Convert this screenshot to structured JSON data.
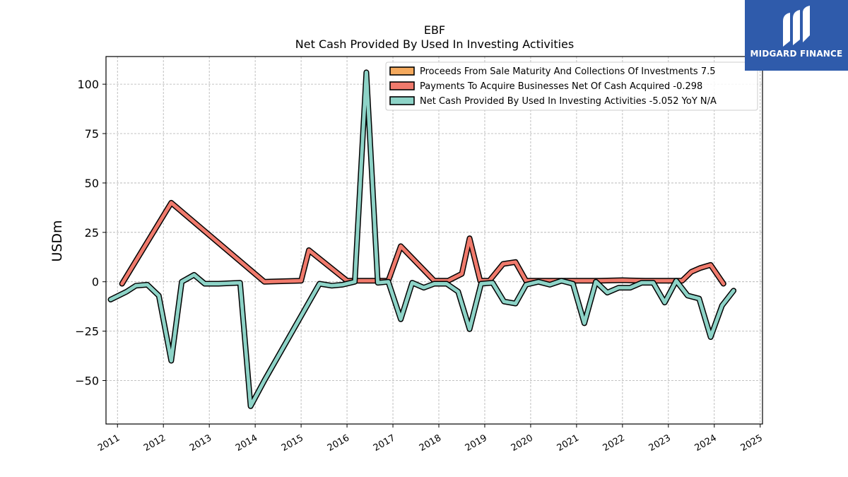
{
  "chart_data": {
    "type": "line",
    "title": "EBF",
    "subtitle": "Net Cash Provided By Used In Investing Activities",
    "ylabel": "USDm",
    "xlabel": "",
    "xlim": [
      2010.75,
      2025.05
    ],
    "ylim": [
      -72,
      114
    ],
    "yticks": [
      -50,
      -25,
      0,
      25,
      50,
      75,
      100
    ],
    "xticks": [
      "2011",
      "2012",
      "2013",
      "2014",
      "2015",
      "2016",
      "2017",
      "2018",
      "2019",
      "2020",
      "2021",
      "2022",
      "2023",
      "2024",
      "2025"
    ],
    "grid": true,
    "legend_position": "top-right",
    "series": [
      {
        "name": "Proceeds From Sale Maturity And Collections Of Investments",
        "legend": "Proceeds From Sale Maturity And Collections Of Investments  7.5",
        "color": "#f4a95d",
        "points": []
      },
      {
        "name": "Payments To Acquire Businesses Net Of Cash Acquired",
        "legend": "Payments To Acquire Businesses Net Of Cash Acquired  -0.298",
        "color": "#f07a6c",
        "points": [
          [
            2011.1,
            -1
          ],
          [
            2012.17,
            40
          ],
          [
            2014.2,
            0
          ],
          [
            2015.0,
            0.5
          ],
          [
            2015.17,
            16
          ],
          [
            2016.0,
            0.5
          ],
          [
            2016.5,
            0.5
          ],
          [
            2016.9,
            0.5
          ],
          [
            2017.17,
            18
          ],
          [
            2017.9,
            0.5
          ],
          [
            2018.2,
            0.5
          ],
          [
            2018.5,
            4
          ],
          [
            2018.67,
            22
          ],
          [
            2018.9,
            0.5
          ],
          [
            2019.1,
            0.5
          ],
          [
            2019.4,
            9
          ],
          [
            2019.67,
            10
          ],
          [
            2019.9,
            0.5
          ],
          [
            2020.2,
            0.5
          ],
          [
            2021.0,
            0.5
          ],
          [
            2021.5,
            0.5
          ],
          [
            2022.0,
            0.8
          ],
          [
            2022.5,
            0.5
          ],
          [
            2023.0,
            0.5
          ],
          [
            2023.3,
            0.5
          ],
          [
            2023.5,
            5
          ],
          [
            2023.7,
            7
          ],
          [
            2023.92,
            8.5
          ],
          [
            2024.2,
            -1
          ]
        ]
      },
      {
        "name": "Net Cash Provided By Used In Investing Activities",
        "legend": "Net Cash Provided By Used In Investing Activities  -5.052 YoY N/A",
        "color": "#8dd3c7",
        "points": [
          [
            2010.85,
            -9
          ],
          [
            2011.2,
            -5
          ],
          [
            2011.4,
            -2
          ],
          [
            2011.65,
            -1.5
          ],
          [
            2011.9,
            -7
          ],
          [
            2012.17,
            -40
          ],
          [
            2012.4,
            0
          ],
          [
            2012.67,
            3.5
          ],
          [
            2012.9,
            -1
          ],
          [
            2013.2,
            -1
          ],
          [
            2013.67,
            -0.5
          ],
          [
            2013.9,
            -63
          ],
          [
            2014.2,
            -50
          ],
          [
            2015.4,
            -1
          ],
          [
            2015.67,
            -2
          ],
          [
            2015.9,
            -1.5
          ],
          [
            2016.17,
            0
          ],
          [
            2016.42,
            106
          ],
          [
            2016.67,
            -0.5
          ],
          [
            2016.9,
            0
          ],
          [
            2017.17,
            -19
          ],
          [
            2017.42,
            -0.5
          ],
          [
            2017.67,
            -3
          ],
          [
            2017.9,
            -1
          ],
          [
            2018.17,
            -1
          ],
          [
            2018.42,
            -5
          ],
          [
            2018.67,
            -24
          ],
          [
            2018.92,
            -1
          ],
          [
            2019.17,
            -0.5
          ],
          [
            2019.42,
            -10
          ],
          [
            2019.67,
            -11
          ],
          [
            2019.9,
            -1.5
          ],
          [
            2020.17,
            0
          ],
          [
            2020.42,
            -1.5
          ],
          [
            2020.67,
            0.5
          ],
          [
            2020.92,
            -1
          ],
          [
            2021.17,
            -21
          ],
          [
            2021.42,
            0
          ],
          [
            2021.67,
            -5.5
          ],
          [
            2021.92,
            -3
          ],
          [
            2022.17,
            -3
          ],
          [
            2022.42,
            -0.5
          ],
          [
            2022.67,
            -0.5
          ],
          [
            2022.92,
            -10.5
          ],
          [
            2023.17,
            0.5
          ],
          [
            2023.42,
            -7
          ],
          [
            2023.67,
            -8.5
          ],
          [
            2023.92,
            -28
          ],
          [
            2024.17,
            -12
          ],
          [
            2024.42,
            -4.5
          ]
        ]
      }
    ]
  },
  "logo": {
    "text": "MIDGARD FINANCE",
    "color": "#2f5bab"
  }
}
